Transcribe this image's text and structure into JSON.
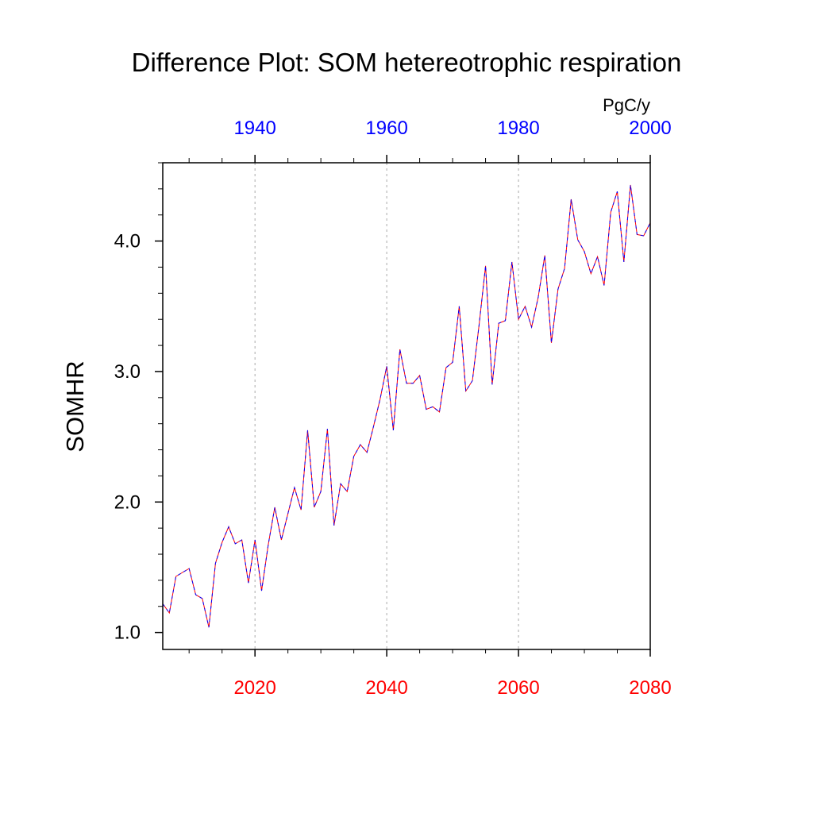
{
  "chart_data": {
    "type": "line",
    "title": "Difference Plot: SOM hetereotrophic respiration",
    "ylabel": "SOMHR",
    "units": "PgC/y",
    "ylim": [
      0.87,
      4.6
    ],
    "yticks": [
      "1.0",
      "2.0",
      "3.0",
      "4.0"
    ],
    "x_bottom": {
      "range": [
        2006,
        2080
      ],
      "ticks": [
        "2020",
        "2040",
        "2060",
        "2080"
      ],
      "color": "#ff0000"
    },
    "x_top": {
      "range": [
        1926,
        2000
      ],
      "ticks": [
        "1940",
        "1960",
        "1980",
        "2000"
      ],
      "color": "#0000ff"
    },
    "grid": "vertical dotted at bottom major ticks",
    "series": [
      {
        "x": [
          2006,
          2007,
          2008,
          2009,
          2010,
          2011,
          2012,
          2013,
          2014,
          2015,
          2016,
          2017,
          2018,
          2019,
          2020,
          2021,
          2022,
          2023,
          2024,
          2025,
          2026,
          2027,
          2028,
          2029,
          2030,
          2031,
          2032,
          2033,
          2034,
          2035,
          2036,
          2037,
          2038,
          2039,
          2040,
          2041,
          2042,
          2043,
          2044,
          2045,
          2046,
          2047,
          2048,
          2049,
          2050,
          2051,
          2052,
          2053,
          2054,
          2055,
          2056,
          2057,
          2058,
          2059,
          2060,
          2061,
          2062,
          2063,
          2064,
          2065,
          2066,
          2067,
          2068,
          2069,
          2070,
          2071,
          2072,
          2073,
          2074,
          2075,
          2076,
          2077,
          2078,
          2079,
          2080
        ],
        "values": [
          1.22,
          1.15,
          1.43,
          1.46,
          1.49,
          1.29,
          1.26,
          1.04,
          1.53,
          1.69,
          1.81,
          1.68,
          1.71,
          1.38,
          1.71,
          1.32,
          1.67,
          1.96,
          1.71,
          1.91,
          2.11,
          1.94,
          2.55,
          1.96,
          2.08,
          2.56,
          1.82,
          2.14,
          2.08,
          2.35,
          2.44,
          2.38,
          2.58,
          2.79,
          3.04,
          2.55,
          3.17,
          2.91,
          2.91,
          2.97,
          2.71,
          2.73,
          2.69,
          3.03,
          3.07,
          3.5,
          2.85,
          2.93,
          3.35,
          3.81,
          2.9,
          3.37,
          3.39,
          3.84,
          3.4,
          3.5,
          3.34,
          3.57,
          3.89,
          3.22,
          3.63,
          3.79,
          4.32,
          4.01,
          3.92,
          3.75,
          3.88,
          3.66,
          4.22,
          4.38,
          3.84,
          4.43,
          4.05,
          4.04,
          4.14
        ],
        "colors": [
          "#ff0000",
          "#0000ff"
        ]
      }
    ]
  }
}
